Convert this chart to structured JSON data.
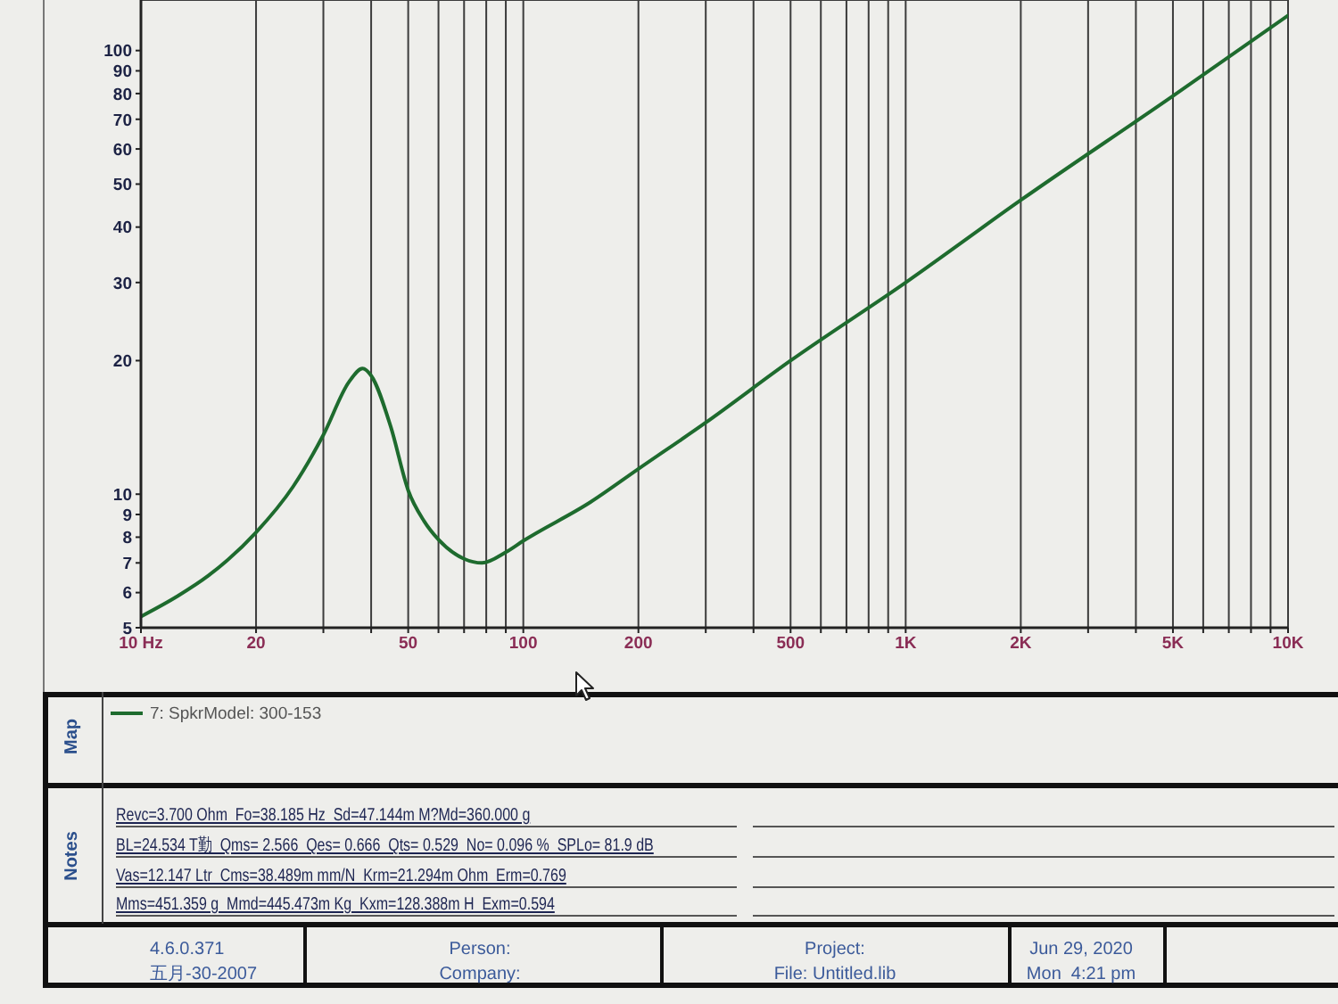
{
  "chart_data": {
    "type": "line",
    "x": [
      10,
      12.5,
      15,
      20,
      25,
      30,
      35,
      38,
      40,
      45,
      50,
      55,
      60,
      70,
      78,
      90,
      100,
      150,
      200,
      300,
      500,
      1000,
      2000,
      5000,
      10000
    ],
    "series": [
      {
        "name": "7: SpkrModel: 300-153",
        "color": "#1e6b2e",
        "values": [
          5.3,
          5.9,
          6.55,
          8.2,
          10.4,
          13.6,
          17.9,
          19.2,
          18.5,
          14.2,
          10.2,
          8.7,
          7.9,
          7.15,
          7.0,
          7.4,
          7.85,
          9.6,
          11.4,
          14.5,
          20,
          30,
          46,
          79,
          120
        ]
      }
    ],
    "xlim": [
      10,
      10000
    ],
    "xticks": [
      {
        "value": 10,
        "label": "10 Hz"
      },
      20,
      {
        "value": 30,
        "label": null
      },
      {
        "value": 40,
        "label": null
      },
      50,
      {
        "value": 60,
        "label": null
      },
      {
        "value": 70,
        "label": null
      },
      {
        "value": 80,
        "label": null
      },
      {
        "value": 90,
        "label": null
      },
      100,
      200,
      {
        "value": 300,
        "label": null
      },
      {
        "value": 400,
        "label": null
      },
      500,
      {
        "value": 600,
        "label": null
      },
      {
        "value": 700,
        "label": null
      },
      {
        "value": 800,
        "label": null
      },
      {
        "value": 900,
        "label": null
      },
      {
        "value": 1000,
        "label": "1K"
      },
      {
        "value": 2000,
        "label": "2K"
      },
      {
        "value": 3000,
        "label": null
      },
      {
        "value": 4000,
        "label": null
      },
      {
        "value": 5000,
        "label": "5K"
      },
      {
        "value": 6000,
        "label": null
      },
      {
        "value": 7000,
        "label": null
      },
      {
        "value": 8000,
        "label": null
      },
      {
        "value": 9000,
        "label": null
      },
      {
        "value": 10000,
        "label": "10K"
      }
    ],
    "ylim": [
      5,
      130
    ],
    "yticks": [
      5,
      6,
      7,
      8,
      9,
      10,
      20,
      30,
      40,
      50,
      60,
      70,
      80,
      90,
      100
    ],
    "log": "xy",
    "grid": true,
    "legend": "bottom",
    "annotations": [
      "Map",
      "Notes",
      "Revc=3.700 Ohm  Fo=38.185 Hz  Sd=47.144m M?Md=360.000 g",
      "BL=24.534 T勤  Qms= 2.566  Qes= 0.666  Qts= 0.529  No= 0.096 %  SPLo= 81.9 dB",
      "Vas=12.147 Ltr  Cms=38.489m mm/N  Krm=21.294m Ohm  Erm=0.769",
      "Mms=451.359 g  Mmd=445.473m Kg  Kxm=128.388m H  Exm=0.594",
      "4.6.0.371",
      "五月-30-2007",
      "Person:",
      "Company:",
      "Project:",
      "File: Untitled.lib",
      "Jun 29, 2020",
      "Mon  4:21 pm"
    ]
  }
}
